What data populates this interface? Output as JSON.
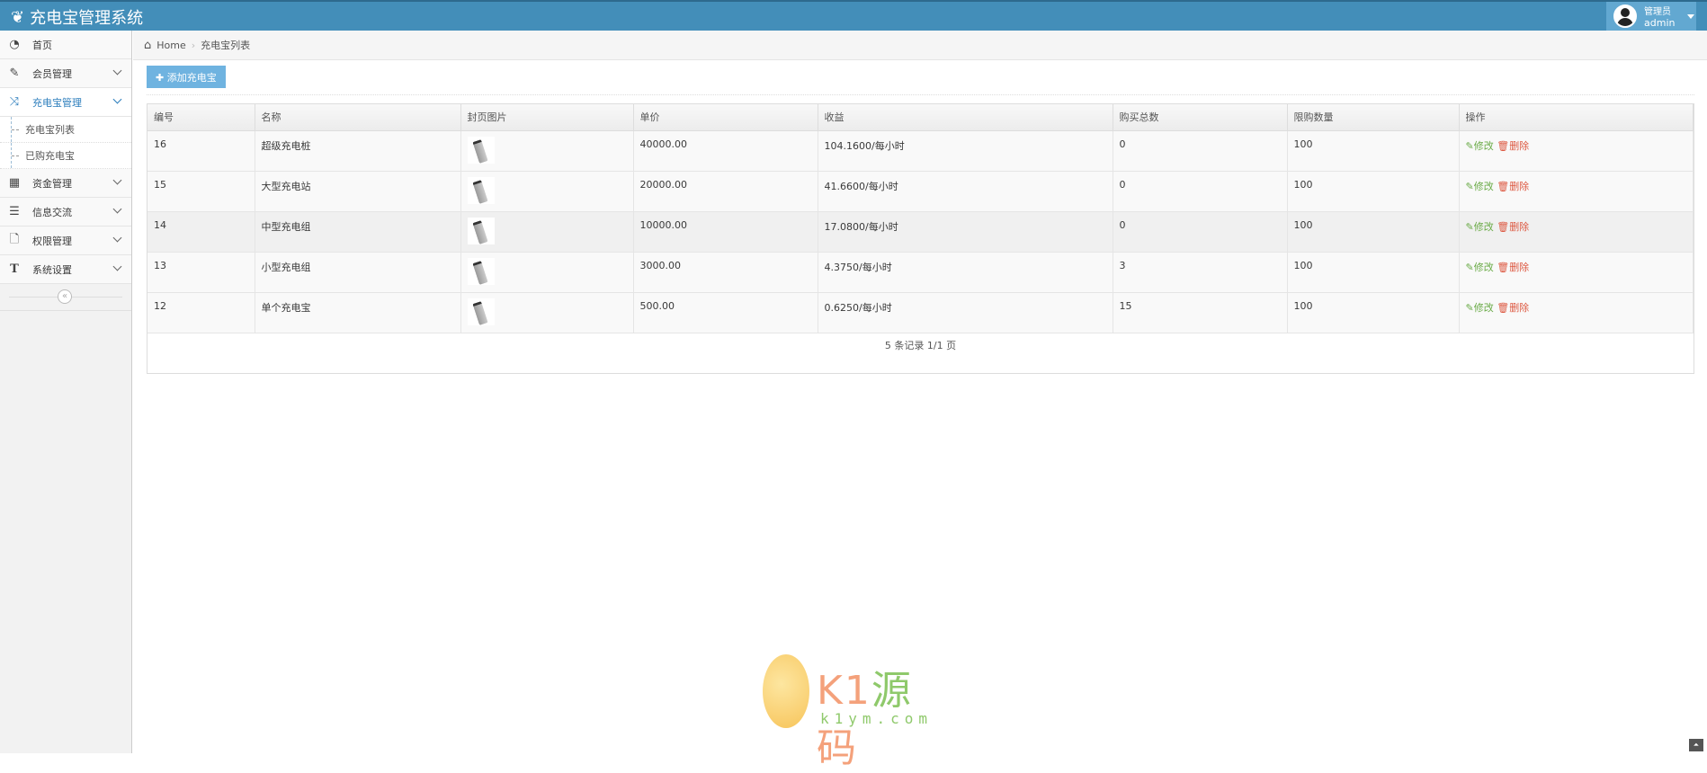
{
  "app": {
    "title": "充电宝管理系统",
    "user_role": "管理员",
    "user_name": "admin"
  },
  "sidebar": {
    "items": [
      {
        "label": "首页",
        "icon": "tachometer-icon"
      },
      {
        "label": "会员管理",
        "icon": "edit-icon"
      },
      {
        "label": "充电宝管理",
        "icon": "shuffle-icon",
        "active": true,
        "children": [
          {
            "label": "充电宝列表"
          },
          {
            "label": "已购充电宝"
          }
        ]
      },
      {
        "label": "资金管理",
        "icon": "calendar-icon"
      },
      {
        "label": "信息交流",
        "icon": "list-icon"
      },
      {
        "label": "权限管理",
        "icon": "file-icon"
      },
      {
        "label": "系统设置",
        "icon": "text-icon"
      }
    ],
    "collapse": "«"
  },
  "breadcrumb": {
    "home": "Home",
    "current": "充电宝列表"
  },
  "toolbar": {
    "add_label": "添加充电宝"
  },
  "table": {
    "columns": [
      "编号",
      "名称",
      "封页图片",
      "单价",
      "收益",
      "购买总数",
      "限购数量",
      "操作"
    ],
    "rows": [
      {
        "id": "16",
        "name": "超级充电桩",
        "price": "40000.00",
        "income": "104.1600/每小时",
        "bought": "0",
        "limit": "100"
      },
      {
        "id": "15",
        "name": "大型充电站",
        "price": "20000.00",
        "income": "41.6600/每小时",
        "bought": "0",
        "limit": "100"
      },
      {
        "id": "14",
        "name": "中型充电组",
        "price": "10000.00",
        "income": "17.0800/每小时",
        "bought": "0",
        "limit": "100"
      },
      {
        "id": "13",
        "name": "小型充电组",
        "price": "3000.00",
        "income": "4.3750/每小时",
        "bought": "3",
        "limit": "100"
      },
      {
        "id": "12",
        "name": "单个充电宝",
        "price": "500.00",
        "income": "0.6250/每小时",
        "bought": "15",
        "limit": "100"
      }
    ],
    "edit_label": "修改",
    "delete_label": "删除",
    "pagination": "5 条记录 1/1 页"
  },
  "watermark": {
    "text": "K1源码",
    "sub": "k1ym.com"
  },
  "colors": {
    "header": "#438eb9",
    "accent": "#2b7dbc",
    "edit": "#69aa46",
    "delete": "#dd5a43",
    "button": "#6fb3e0"
  }
}
